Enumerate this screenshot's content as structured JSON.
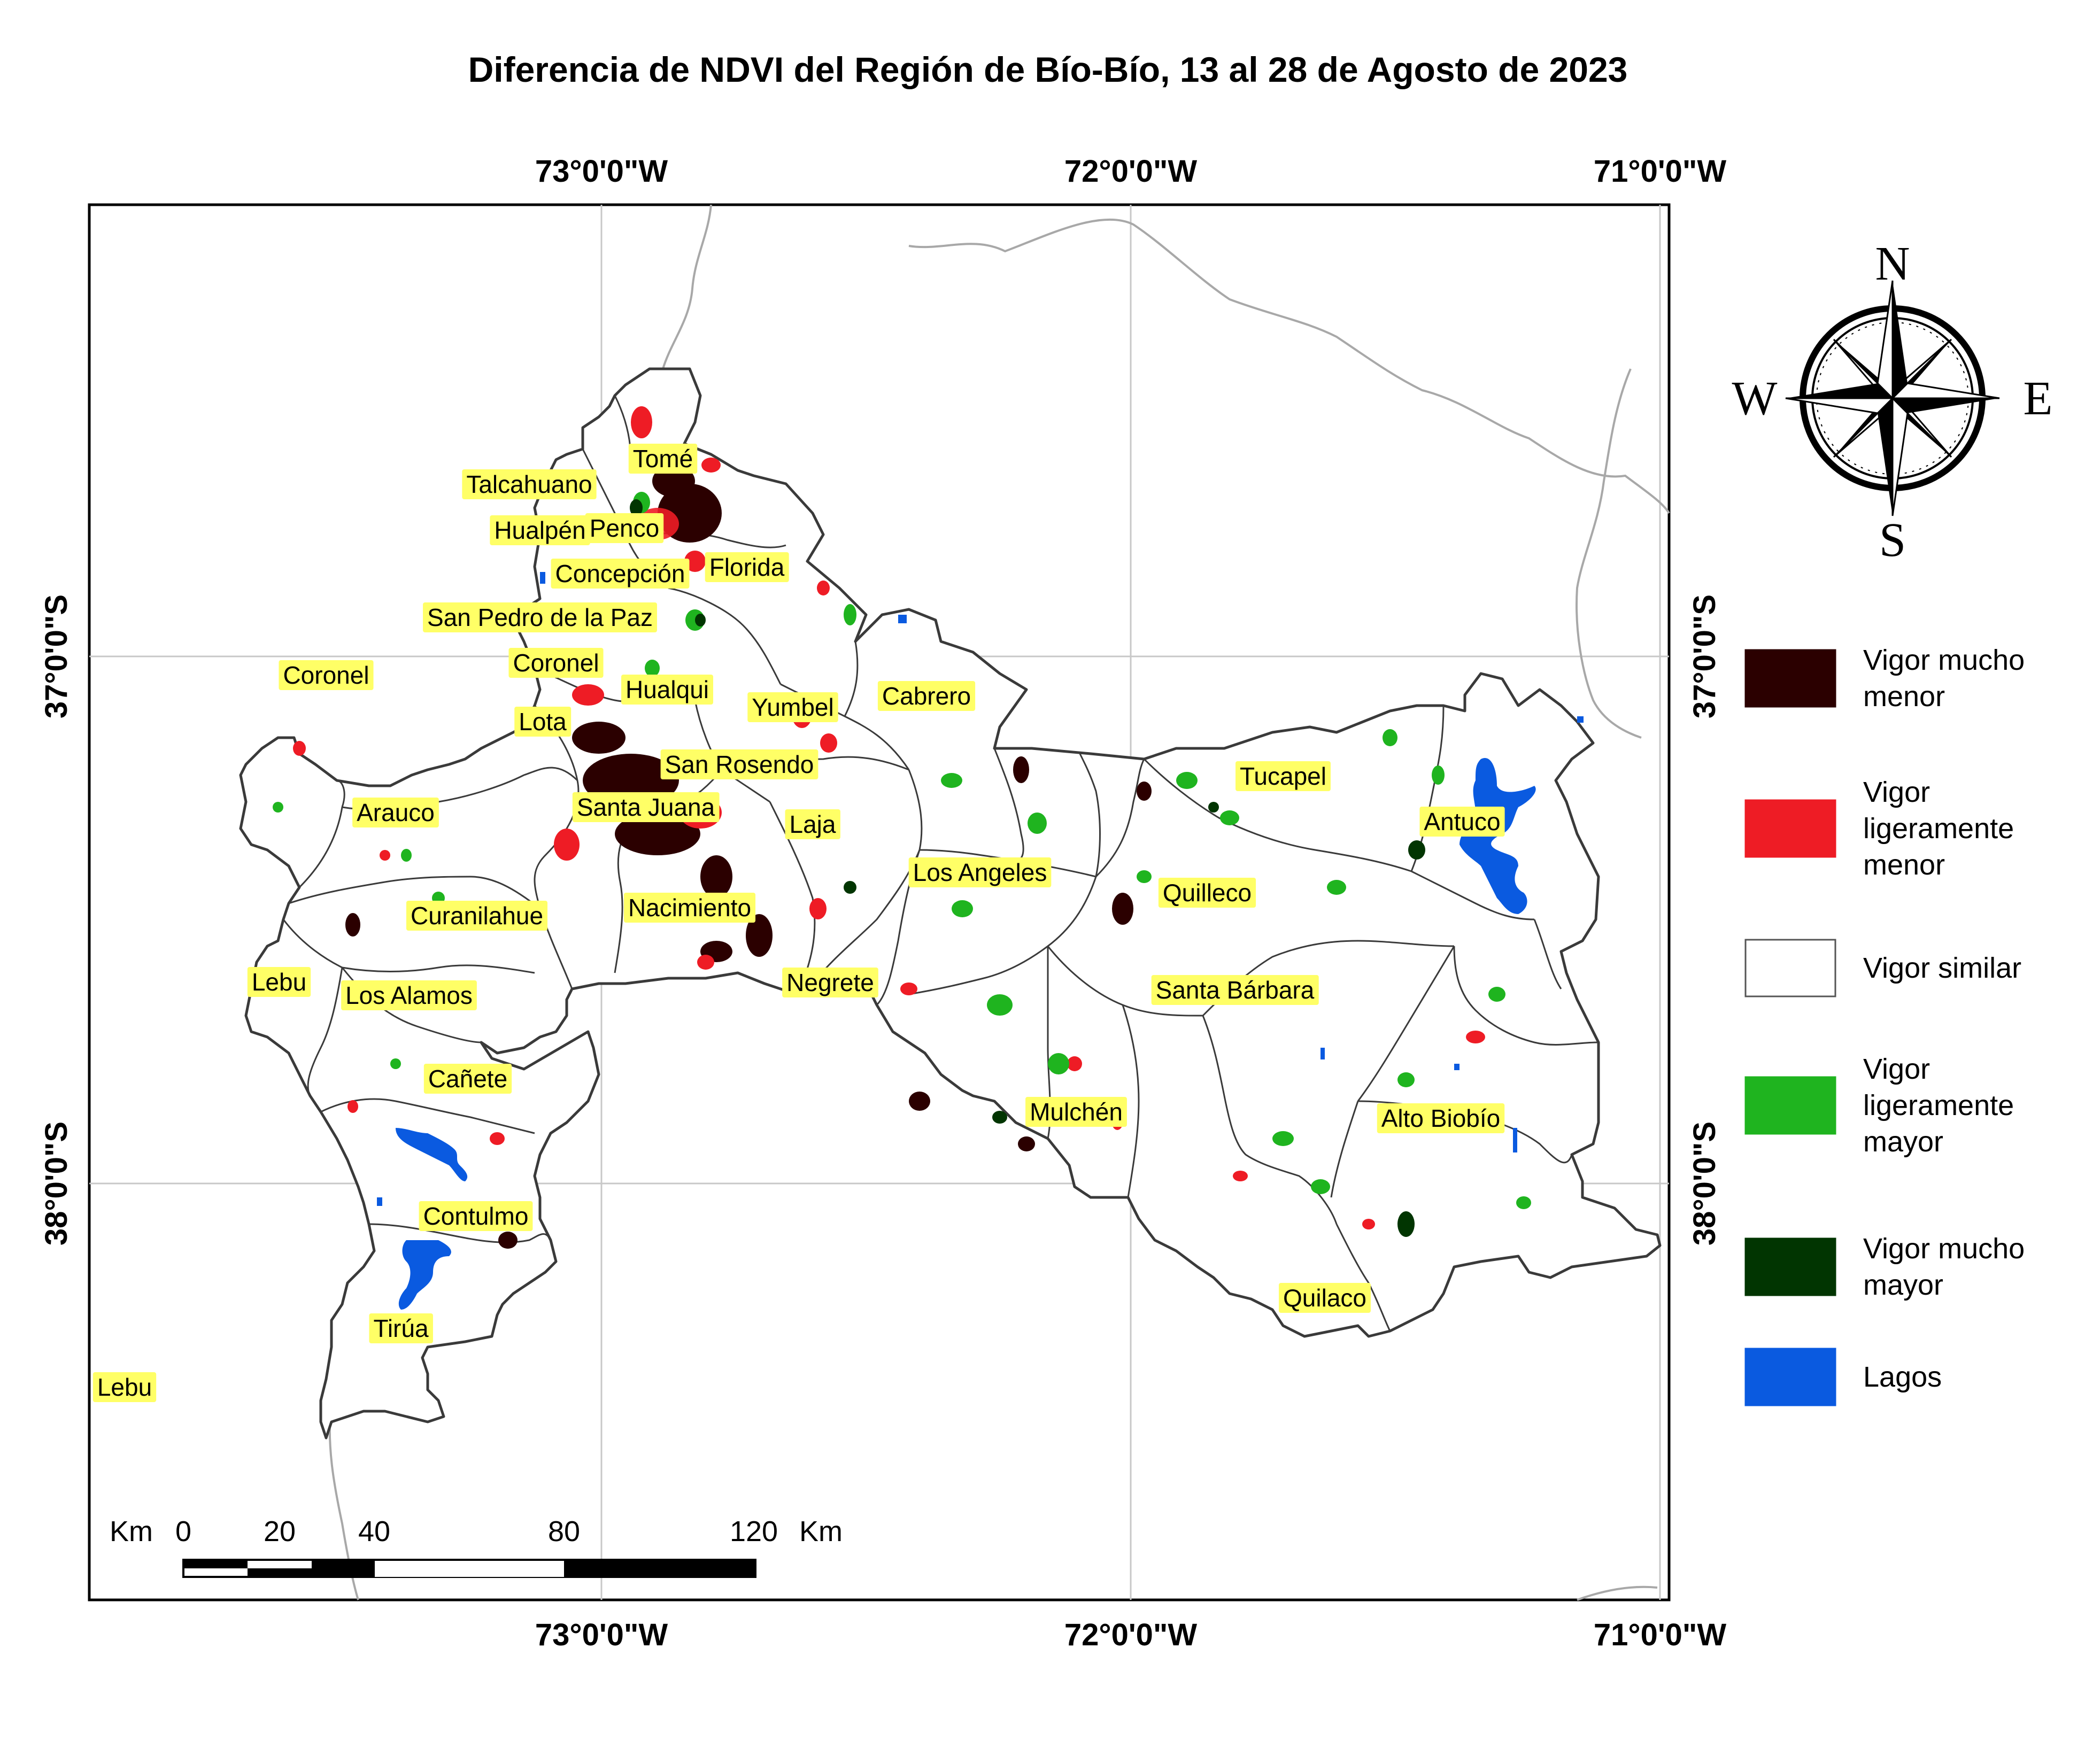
{
  "title": "Diferencia de NDVI del Región de Bío-Bío, 13 al 28 de Agosto de 2023",
  "grid": {
    "longitudes": [
      "73°0'0\"W",
      "72°0'0\"W",
      "71°0'0\"W"
    ],
    "latitudes": [
      "37°0'0\"S",
      "38°0'0\"S"
    ]
  },
  "compass": {
    "n": "N",
    "s": "S",
    "e": "E",
    "w": "W"
  },
  "legend": [
    {
      "label": "Vigor mucho menor",
      "lines": [
        "Vigor mucho",
        "menor"
      ],
      "color": "#2b0000"
    },
    {
      "label": "Vigor ligeramente menor",
      "lines": [
        "Vigor",
        "ligeramente",
        "menor"
      ],
      "color": "#ee1c25"
    },
    {
      "label": "Vigor similar",
      "lines": [
        "Vigor similar"
      ],
      "color": "#ffffff"
    },
    {
      "label": "Vigor ligeramente mayor",
      "lines": [
        "Vigor",
        "ligeramente",
        "mayor"
      ],
      "color": "#1fb41f"
    },
    {
      "label": "Vigor mucho mayor",
      "lines": [
        "Vigor mucho",
        "mayor"
      ],
      "color": "#013501"
    },
    {
      "label": "Lagos",
      "lines": [
        "Lagos"
      ],
      "color": "#0a5ae0"
    }
  ],
  "scalebar": {
    "unit_left": "Km",
    "unit_right": "Km",
    "ticks": [
      "0",
      "20",
      "40",
      "80",
      "120"
    ]
  },
  "places": [
    "Tomé",
    "Talcahuano",
    "Hualpén",
    "Penco",
    "Concepción",
    "Florida",
    "San Pedro de la Paz",
    "Coronel",
    "Coronel",
    "Hualqui",
    "Yumbel",
    "Cabrero",
    "Lota",
    "San Rosendo",
    "Santa Juana",
    "Arauco",
    "Laja",
    "Tucapel",
    "Antuco",
    "Los Angeles",
    "Quilleco",
    "Curanilahue",
    "Nacimiento",
    "Lebu",
    "Los Alamos",
    "Negrete",
    "Santa Bárbara",
    "Cañete",
    "Mulchén",
    "Alto Biobío",
    "Contulmo",
    "Quilaco",
    "Tirúa",
    "Lebu"
  ],
  "colors": {
    "region_border": "#3a3a3a",
    "outside_border": "#a8a8a8",
    "graticule": "#c8c8c8",
    "label_bg": "#ffff66"
  }
}
